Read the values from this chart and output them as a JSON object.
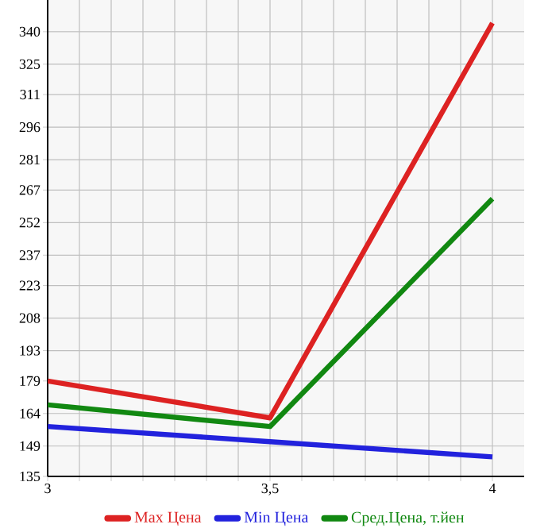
{
  "chart_data": {
    "type": "line",
    "x": [
      3,
      3.5,
      4
    ],
    "xlim": [
      3,
      4.0714
    ],
    "xticks": [
      3,
      {
        "value": 3.5,
        "label": "3,5"
      },
      4
    ],
    "ylim": [
      135,
      354.6
    ],
    "yticks": [
      135,
      149,
      164,
      179,
      193,
      208,
      223,
      237,
      252,
      267,
      281,
      296,
      311,
      325,
      340
    ],
    "grid": true,
    "legend": "bottom",
    "marker": "none",
    "line_style": "solid",
    "series": [
      {
        "name": "Max Цена",
        "color": "#dd2222",
        "values": [
          179,
          162,
          344
        ]
      },
      {
        "name": "Min Цена",
        "color": "#2222dd",
        "values": [
          158,
          151,
          144
        ]
      },
      {
        "name": "Сред.Цена, т.йен",
        "color": "#118811",
        "values": [
          168,
          158,
          263
        ]
      }
    ]
  }
}
